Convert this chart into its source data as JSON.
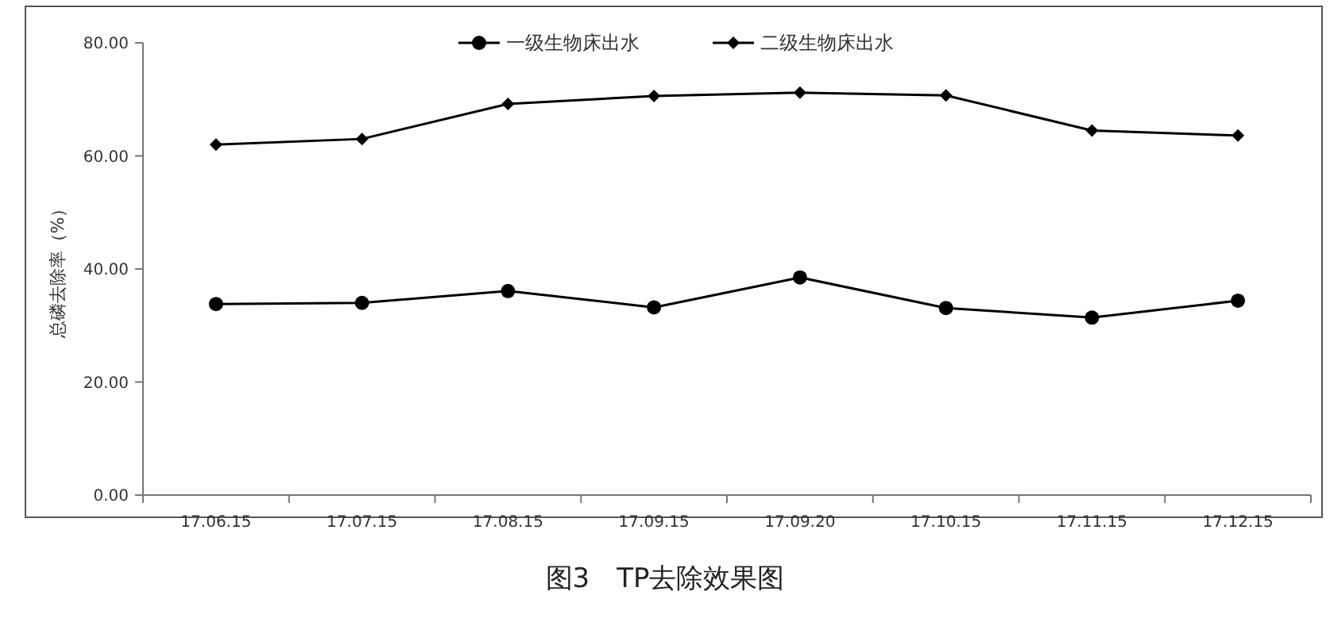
{
  "chart_data": {
    "type": "line",
    "title": "图3　TP去除效果图",
    "ylabel": "总磷去除率（%）",
    "categories": [
      "17.06.15",
      "17.07.15",
      "17.08.15",
      "17.09.15",
      "17.09.20",
      "17.10.15",
      "17.11.15",
      "17.12.15"
    ],
    "series": [
      {
        "name": "一级生物床出水",
        "color": "#000000",
        "marker": "circle",
        "values": [
          33.8,
          34.0,
          36.1,
          33.2,
          38.5,
          33.1,
          31.4,
          34.4
        ]
      },
      {
        "name": "二级生物床出水",
        "color": "#000000",
        "marker": "diamond",
        "values": [
          62.0,
          63.0,
          69.2,
          70.6,
          71.2,
          70.7,
          64.5,
          63.6
        ]
      }
    ],
    "ylim": [
      0,
      80
    ],
    "yticks": [
      {
        "value": 0,
        "label": "0.00"
      },
      {
        "value": 20,
        "label": "20.00"
      },
      {
        "value": 40,
        "label": "40.00"
      },
      {
        "value": 60,
        "label": "60.00"
      },
      {
        "value": 80,
        "label": "80.00"
      }
    ],
    "grid": false,
    "legend": "top",
    "line_style": "solid"
  }
}
